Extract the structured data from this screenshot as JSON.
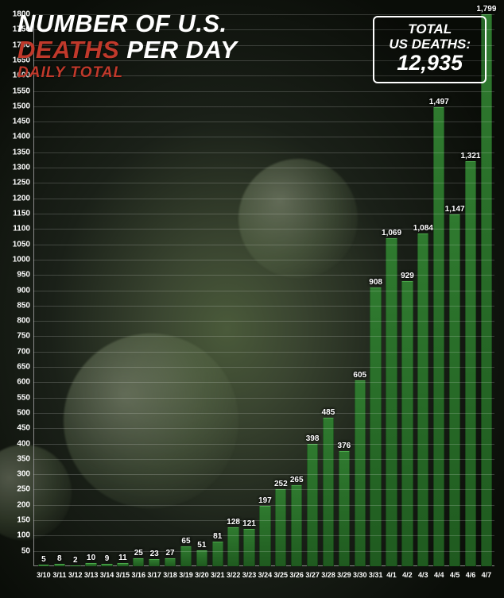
{
  "header": {
    "title_prefix": "NUMBER OF U.S.",
    "title_accent": "DEATHS",
    "title_suffix": " PER DAY",
    "subtitle": "DAILY TOTAL"
  },
  "total_box": {
    "label_line1": "TOTAL",
    "label_line2": "US DEATHS:",
    "value": "12,935"
  },
  "chart": {
    "type": "bar",
    "categories": [
      "3/10",
      "3/11",
      "3/12",
      "3/13",
      "3/14",
      "3/15",
      "3/16",
      "3/17",
      "3/18",
      "3/19",
      "3/20",
      "3/21",
      "3/22",
      "3/23",
      "3/24",
      "3/25",
      "3/26",
      "3/27",
      "3/28",
      "3/29",
      "3/30",
      "3/31",
      "4/1",
      "4/2",
      "4/3",
      "4/4",
      "4/5",
      "4/6",
      "4/7"
    ],
    "values": [
      5,
      8,
      2,
      10,
      9,
      11,
      25,
      23,
      27,
      65,
      51,
      81,
      128,
      121,
      197,
      252,
      265,
      398,
      485,
      376,
      605,
      908,
      1069,
      929,
      1084,
      1497,
      1147,
      1321,
      1799
    ],
    "value_labels": [
      "5",
      "8",
      "2",
      "10",
      "9",
      "11",
      "25",
      "23",
      "27",
      "65",
      "51",
      "81",
      "128",
      "121",
      "197",
      "252",
      "265",
      "398",
      "485",
      "376",
      "605",
      "908",
      "1,069",
      "929",
      "1,084",
      "1,497",
      "1,147",
      "1,321",
      "1,799"
    ],
    "bar_color_top": "#2f7a2f",
    "bar_color_bottom": "#1f5a1f",
    "bar_width_ratio": 0.72,
    "ylim": [
      0,
      1800
    ],
    "ytick_step": 50,
    "grid_color": "rgba(255,255,255,0.18)",
    "axis_color": "#888888",
    "background": "radial-gradient virus dark green",
    "text_color": "#ffffff",
    "accent_color": "#c0392b",
    "title_fontsize": 31,
    "subtitle_fontsize": 19,
    "totalbox_value_fontsize": 27,
    "totalbox_label_fontsize": 17,
    "value_label_fontsize": 10,
    "axis_label_fontsize": 10,
    "x_label_fontsize": 9
  }
}
